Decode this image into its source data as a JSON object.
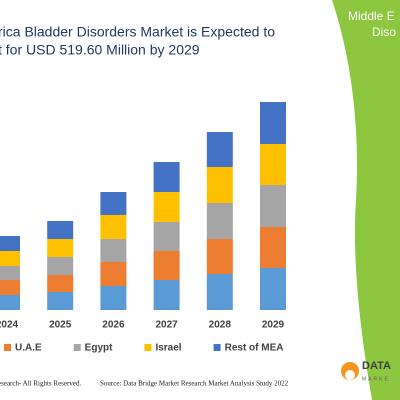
{
  "chart_data": {
    "type": "stacked-bar",
    "title": [
      "rica Bladder Disorders Market is Expected to",
      "t for USD 519.60 Million by 2029"
    ],
    "categories": [
      "2024",
      "2025",
      "2026",
      "2027",
      "2028",
      "2029"
    ],
    "series": [
      {
        "color": "#5b9bd5",
        "values": [
          15,
          18,
          24,
          30,
          36,
          42
        ]
      },
      {
        "name": "U.A.E",
        "color": "#ed7d31",
        "values": [
          15,
          17,
          24,
          29,
          35,
          41
        ]
      },
      {
        "name": "Egypt",
        "color": "#a5a5a5",
        "values": [
          14,
          18,
          23,
          29,
          36,
          42
        ]
      },
      {
        "name": "Israel",
        "color": "#ffc000",
        "values": [
          15,
          18,
          24,
          30,
          36,
          41
        ]
      },
      {
        "name": "Rest of MEA",
        "color": "#4472c4",
        "values": [
          15,
          18,
          23,
          30,
          35,
          42
        ]
      }
    ],
    "ylim": [
      0,
      210
    ]
  },
  "footer": {
    "rights": "esearch- All Rights Reserved.",
    "source": "Source: Data Bridge Market Research Market Analysis Study 2022"
  },
  "panel": {
    "lines": [
      "Middle E",
      "Diso"
    ],
    "logo": "DATA",
    "logo_sub": "MARKE"
  }
}
